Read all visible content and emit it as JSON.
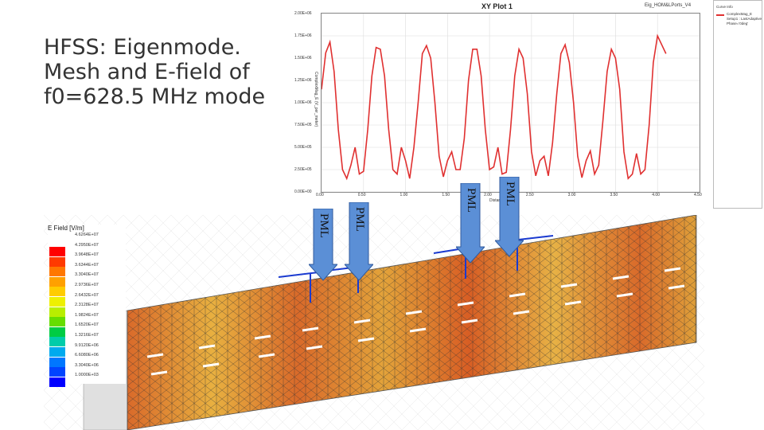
{
  "slide": {
    "title": "HFSS: Eigenmode.\nMesh and E-field of\nf0=628.5 MHz mode"
  },
  "plot": {
    "title": "XY Plot 1",
    "subtitle": "Eig_HOM&LPorts_V4",
    "ylabel": "ComplexMag_E (V_per_meter)",
    "xlabel": "Distance [meter]",
    "yticks": [
      "2.00E+06",
      "1.75E+06",
      "1.50E+06",
      "1.25E+06",
      "1.00E+06",
      "7.50E+05",
      "5.00E+05",
      "2.50E+05",
      "0.00E+00"
    ],
    "xticks": [
      "0.00",
      "0.50",
      "1.00",
      "1.50",
      "2.00",
      "2.50",
      "3.00",
      "3.50",
      "4.00",
      "4.50"
    ],
    "legend": {
      "header": "Curve Info",
      "entry1": "ComplexMag_E",
      "entry2": "Setup1 : LastAdaptive",
      "entry3": "Phase='0deg'"
    },
    "curve_color": "#e03030"
  },
  "chart_data": {
    "type": "line",
    "title": "XY Plot 1",
    "xlabel": "Distance [meter]",
    "ylabel": "ComplexMag_E (V_per_meter)",
    "xlim": [
      0,
      4.5
    ],
    "ylim": [
      0,
      2000000
    ],
    "grid": true,
    "legend_placement": "right",
    "series": [
      {
        "name": "ComplexMag_E",
        "x": [
          0.0,
          0.05,
          0.1,
          0.15,
          0.2,
          0.25,
          0.3,
          0.35,
          0.4,
          0.45,
          0.5,
          0.55,
          0.6,
          0.65,
          0.7,
          0.75,
          0.8,
          0.85,
          0.9,
          0.95,
          1.0,
          1.05,
          1.1,
          1.15,
          1.2,
          1.25,
          1.3,
          1.35,
          1.4,
          1.45,
          1.5,
          1.55,
          1.6,
          1.65,
          1.7,
          1.75,
          1.8,
          1.85,
          1.9,
          1.95,
          2.0,
          2.05,
          2.1,
          2.15,
          2.2,
          2.25,
          2.3,
          2.35,
          2.4,
          2.45,
          2.5,
          2.55,
          2.6,
          2.65,
          2.7,
          2.75,
          2.8,
          2.85,
          2.9,
          2.95,
          3.0,
          3.05,
          3.1,
          3.15,
          3.2,
          3.25,
          3.3,
          3.35,
          3.4,
          3.45,
          3.5,
          3.55,
          3.6,
          3.65,
          3.7,
          3.75,
          3.8,
          3.85,
          3.9,
          3.95,
          4.0,
          4.05,
          4.1
        ],
        "y": [
          1150000,
          1560000,
          1680000,
          1350000,
          700000,
          250000,
          150000,
          300000,
          500000,
          200000,
          230000,
          700000,
          1300000,
          1620000,
          1600000,
          1300000,
          700000,
          250000,
          200000,
          500000,
          350000,
          150000,
          500000,
          1000000,
          1550000,
          1640000,
          1500000,
          1000000,
          400000,
          170000,
          350000,
          450000,
          250000,
          250000,
          600000,
          1250000,
          1600000,
          1600000,
          1300000,
          700000,
          250000,
          280000,
          500000,
          200000,
          220000,
          700000,
          1300000,
          1600000,
          1500000,
          1100000,
          450000,
          180000,
          350000,
          400000,
          180000,
          550000,
          1100000,
          1550000,
          1650000,
          1450000,
          1000000,
          400000,
          160000,
          350000,
          460000,
          200000,
          300000,
          800000,
          1350000,
          1600000,
          1500000,
          1150000,
          450000,
          150000,
          200000,
          430000,
          200000,
          250000,
          750000,
          1450000,
          1750000,
          1650000,
          1550000
        ]
      }
    ]
  },
  "pml_labels": [
    "PML",
    "PML",
    "PML",
    "PML"
  ],
  "efield": {
    "title": "E Field [V/m]",
    "colors": [
      "#ff0000",
      "#ff3a00",
      "#ff7700",
      "#ffa000",
      "#ffcc00",
      "#eef000",
      "#b8ee00",
      "#66dd00",
      "#00cc44",
      "#00ccaa",
      "#00aaee",
      "#0077ff",
      "#0044ff",
      "#0000ff"
    ],
    "values": [
      "4.6264E+07",
      "4.2950E+07",
      "3.9648E+07",
      "3.6344E+07",
      "3.3040E+07",
      "2.9736E+07",
      "2.6432E+07",
      "2.3128E+07",
      "1.9824E+07",
      "1.6520E+07",
      "1.3216E+07",
      "9.9120E+06",
      "6.6080E+06",
      "3.3040E+06",
      "1.0000E+03"
    ]
  }
}
